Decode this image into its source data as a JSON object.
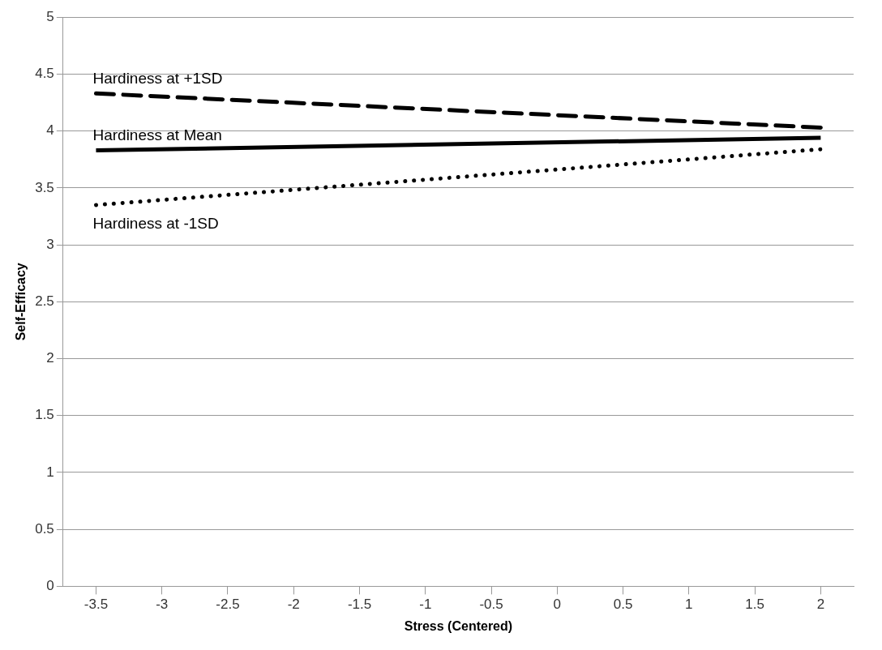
{
  "chart_data": {
    "type": "line",
    "xlabel": "Stress (Centered)",
    "ylabel": "Self-Efficacy",
    "x": [
      -3.5,
      2
    ],
    "xlim": [
      -3.75,
      2.25
    ],
    "xticks": [
      -3.5,
      -3,
      -2.5,
      -2,
      -1.5,
      -1,
      -0.5,
      0,
      0.5,
      1,
      1.5,
      2
    ],
    "ylim": [
      0,
      5
    ],
    "yticks": [
      0,
      0.5,
      1,
      1.5,
      2,
      2.5,
      3,
      3.5,
      4,
      4.5,
      5
    ],
    "grid": "y",
    "legend": false,
    "marker": "none",
    "series": [
      {
        "name": "Hardiness at +1SD",
        "color": "#000000",
        "line_style": "dashed",
        "values": [
          4.33,
          4.03
        ]
      },
      {
        "name": "Hardiness at Mean",
        "color": "#000000",
        "line_style": "solid",
        "values": [
          3.83,
          3.94
        ]
      },
      {
        "name": "Hardiness at -1SD",
        "color": "#000000",
        "line_style": "dotted",
        "values": [
          3.35,
          3.84
        ]
      }
    ]
  }
}
